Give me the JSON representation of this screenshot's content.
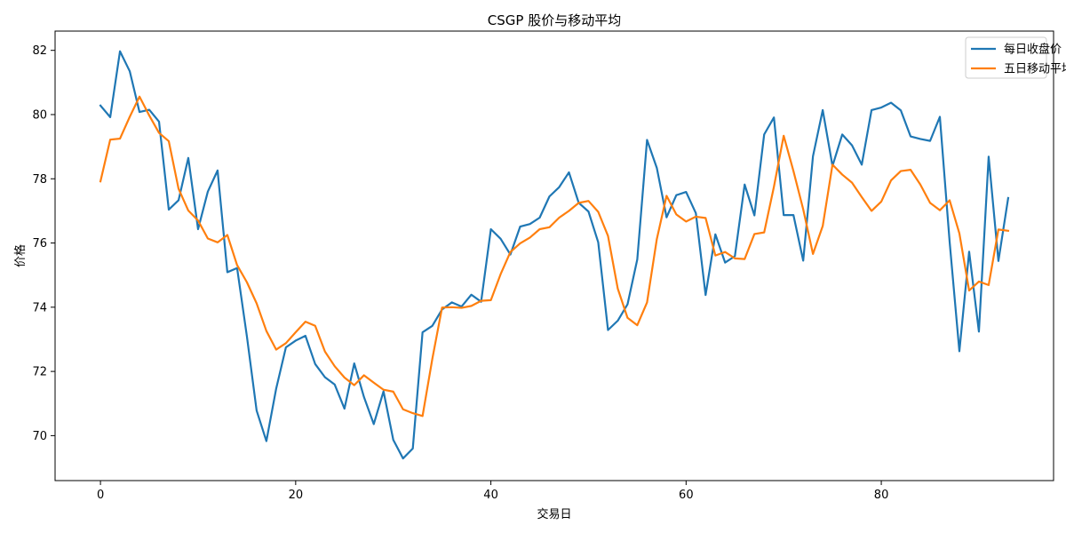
{
  "chart_data": {
    "type": "line",
    "title": "CSGP 股价与移动平均",
    "xlabel": "交易日",
    "ylabel": "价格",
    "xlim": [
      -4.65,
      97.65
    ],
    "ylim": [
      68.6,
      82.6
    ],
    "x_ticks": [
      0,
      20,
      40,
      60,
      80
    ],
    "y_ticks": [
      70,
      72,
      74,
      76,
      78,
      80,
      82
    ],
    "grid": false,
    "legend_position": "top-right",
    "x": [
      0,
      1,
      2,
      3,
      4,
      5,
      6,
      7,
      8,
      9,
      10,
      11,
      12,
      13,
      14,
      15,
      16,
      17,
      18,
      19,
      20,
      21,
      22,
      23,
      24,
      25,
      26,
      27,
      28,
      29,
      30,
      31,
      32,
      33,
      34,
      35,
      36,
      37,
      38,
      39,
      40,
      41,
      42,
      43,
      44,
      45,
      46,
      47,
      48,
      49,
      50,
      51,
      52,
      53,
      54,
      55,
      56,
      57,
      58,
      59,
      60,
      61,
      62,
      63,
      64,
      65,
      66,
      67,
      68,
      69,
      70,
      71,
      72,
      73,
      74,
      75,
      76,
      77,
      78,
      79,
      80,
      81,
      82,
      83,
      84,
      85,
      86,
      87,
      88,
      89,
      90,
      91,
      92,
      93
    ],
    "series": [
      {
        "name": "每日收盘价",
        "color": "#1f77b4",
        "values": [
          80.28,
          79.92,
          81.97,
          81.35,
          80.08,
          80.15,
          79.78,
          77.04,
          77.33,
          78.65,
          76.43,
          77.6,
          78.26,
          75.09,
          75.22,
          73.1,
          70.78,
          69.83,
          71.46,
          72.75,
          72.96,
          73.11,
          72.23,
          71.82,
          71.59,
          70.84,
          72.25,
          71.2,
          70.36,
          71.38,
          69.87,
          69.29,
          69.6,
          73.22,
          73.42,
          73.93,
          74.15,
          74.02,
          74.39,
          74.17,
          76.43,
          76.13,
          75.64,
          76.51,
          76.59,
          76.79,
          77.45,
          77.74,
          78.2,
          77.25,
          76.98,
          76.02,
          73.29,
          73.58,
          74.09,
          75.49,
          79.21,
          78.34,
          76.8,
          77.49,
          77.59,
          76.93,
          74.38,
          76.27,
          75.39,
          75.59,
          77.82,
          76.86,
          79.38,
          79.91,
          76.87,
          76.87,
          75.45,
          78.7,
          80.14,
          78.4,
          79.38,
          79.04,
          78.44,
          80.14,
          80.22,
          80.37,
          80.13,
          79.32,
          79.24,
          79.18,
          79.93,
          76.04,
          72.63,
          75.73,
          73.24,
          78.69,
          75.44,
          77.4
        ]
      },
      {
        "name": "五日移动平均",
        "color": "#ff7f0e",
        "values": [
          77.92,
          79.22,
          79.25,
          79.93,
          80.56,
          79.97,
          79.43,
          79.17,
          77.69,
          77.01,
          76.7,
          76.14,
          76.02,
          76.25,
          75.31,
          74.78,
          74.12,
          73.26,
          72.68,
          72.88,
          73.22,
          73.55,
          73.42,
          72.62,
          72.16,
          71.81,
          71.57,
          71.88,
          71.65,
          71.43,
          71.37,
          70.82,
          70.7,
          70.61,
          72.39,
          73.99,
          74.0,
          73.98,
          74.04,
          74.2,
          74.22,
          75.03,
          75.72,
          75.99,
          76.17,
          76.43,
          76.49,
          76.79,
          77.0,
          77.25,
          77.31,
          76.97,
          76.22,
          74.58,
          73.67,
          73.44,
          74.15,
          76.12,
          77.47,
          76.89,
          76.67,
          76.82,
          76.78,
          75.61,
          75.72,
          75.52,
          75.5,
          76.28,
          76.33,
          77.75,
          79.34,
          78.24,
          77.05,
          75.66,
          76.53,
          78.44,
          78.13,
          77.88,
          77.43,
          77.0,
          77.29,
          77.95,
          78.24,
          78.28,
          77.82,
          77.25,
          77.02,
          77.33,
          76.3,
          74.52,
          74.8,
          74.69,
          76.42,
          76.38
        ]
      }
    ]
  }
}
